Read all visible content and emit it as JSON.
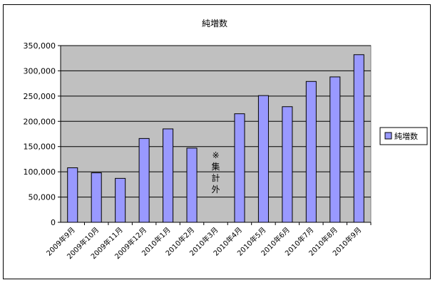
{
  "chart_data": {
    "type": "bar",
    "title": "純増数",
    "categories": [
      "2009年9月",
      "2009年10月",
      "2009年11月",
      "2009年12月",
      "2010年1月",
      "2010年2月",
      "2010年3月",
      "2010年4月",
      "2010年5月",
      "2010年6月",
      "2010年7月",
      "2010年8月",
      "2010年9月"
    ],
    "series": [
      {
        "name": "純増数",
        "values": [
          108000,
          98000,
          87000,
          166000,
          185000,
          147000,
          null,
          215000,
          251000,
          229000,
          279000,
          288000,
          332000
        ]
      }
    ],
    "ylim": [
      0,
      350000
    ],
    "yticks": [
      0,
      50000,
      100000,
      150000,
      200000,
      250000,
      300000,
      350000
    ],
    "ytick_labels": [
      "0",
      "50,000",
      "100,000",
      "150,000",
      "200,000",
      "250,000",
      "300,000",
      "350,000"
    ],
    "xlabel": "",
    "ylabel": "",
    "grid": true,
    "legend_position": "right",
    "annotations": [
      {
        "category": "2010年3月",
        "text": [
          "※",
          "集",
          "計",
          "外"
        ]
      }
    ],
    "colors": {
      "bar_fill": "#9999ff",
      "bar_stroke": "#000000",
      "plot_bg": "#c0c0c0",
      "gridline": "#000000"
    }
  }
}
